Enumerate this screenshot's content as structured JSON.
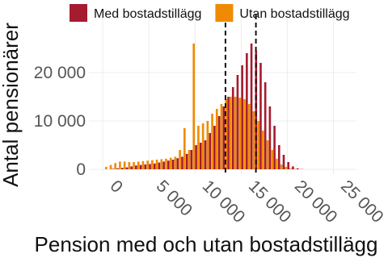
{
  "chart_data": {
    "type": "histogram",
    "x_label": "Pension med och utan bostadstillägg",
    "y_label": "Antal pensionärer",
    "bins": [
      0,
      500,
      1000,
      1500,
      2000,
      2500,
      3000,
      3500,
      4000,
      4500,
      5000,
      5500,
      6000,
      6500,
      7000,
      7500,
      8000,
      8500,
      9000,
      9500,
      10000,
      10500,
      11000,
      11500,
      12000,
      12500,
      13000,
      13500,
      14000,
      14500,
      15000,
      15500,
      16000,
      16500,
      17000,
      17500,
      18000,
      18500,
      19000,
      19500,
      20000,
      20500,
      21000,
      21500,
      22000
    ],
    "series": [
      {
        "name": "Med bostadstillägg",
        "color": "#a51c30",
        "values": [
          0,
          0,
          100,
          200,
          300,
          400,
          600,
          800,
          900,
          1000,
          1100,
          1200,
          1400,
          1600,
          1800,
          2000,
          2300,
          2600,
          3200,
          4000,
          5000,
          5500,
          6000,
          7500,
          9000,
          11000,
          13000,
          15000,
          17000,
          19500,
          21500,
          24000,
          26000,
          24500,
          22000,
          18000,
          13000,
          9000,
          5000,
          3000,
          1500,
          600,
          200,
          50
        ]
      },
      {
        "name": "Utan bostadstillägg",
        "color": "#f08a00",
        "values": [
          500,
          900,
          1300,
          1600,
          1600,
          1500,
          1500,
          1600,
          1700,
          1800,
          1900,
          2000,
          2100,
          2200,
          2400,
          2600,
          4000,
          8500,
          4000,
          26000,
          9000,
          9500,
          10000,
          11500,
          12500,
          13500,
          14500,
          15000,
          15000,
          14800,
          14500,
          13500,
          12000,
          10000,
          8000,
          6000,
          4000,
          2200,
          1000,
          500,
          200,
          100,
          50,
          0
        ]
      }
    ],
    "reference_lines": [
      13300,
      16600
    ],
    "xlim": [
      -1500,
      27500
    ],
    "ylim": [
      -1000,
      32000
    ],
    "xticks": [
      0,
      {
        "value": 5000,
        "label": "5 000"
      },
      {
        "value": 10000,
        "label": "10 000"
      },
      {
        "value": 15000,
        "label": "15 000"
      },
      {
        "value": 20000,
        "label": "20 000"
      },
      {
        "value": 25000,
        "label": "25 000"
      }
    ],
    "yticks": [
      0,
      {
        "value": 10000,
        "label": "10 000"
      },
      {
        "value": 20000,
        "label": "20 000"
      }
    ],
    "grid": true,
    "legend": "top"
  }
}
